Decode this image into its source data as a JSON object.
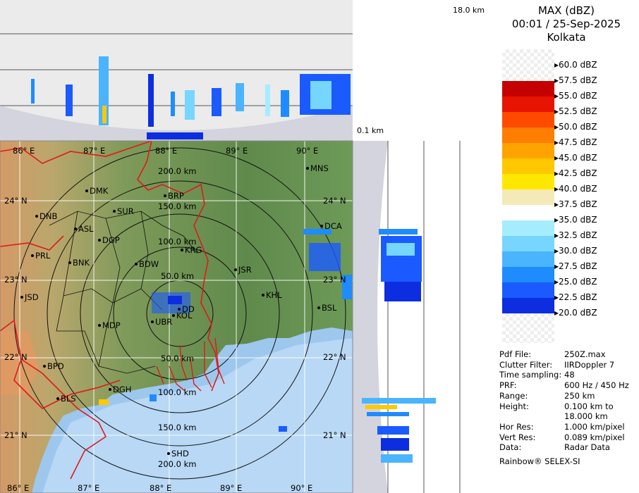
{
  "header": {
    "title": "MAX (dBZ)",
    "datetime": "00:01 / 25-Sep-2025",
    "station": "Kolkata"
  },
  "top_section": {
    "height_label": "18.0 km",
    "base_label": "0.1 km"
  },
  "legend": {
    "levels": [
      "60.0 dBZ",
      "57.5 dBZ",
      "55.0 dBZ",
      "52.5 dBZ",
      "50.0 dBZ",
      "47.5 dBZ",
      "45.0 dBZ",
      "42.5 dBZ",
      "40.0 dBZ",
      "37.5 dBZ",
      "35.0 dBZ",
      "32.5 dBZ",
      "30.0 dBZ",
      "27.5 dBZ",
      "25.0 dBZ",
      "22.5 dBZ",
      "20.0 dBZ"
    ],
    "colors": [
      "#9a0000",
      "#c40000",
      "#e61400",
      "#ff4a00",
      "#ff7d00",
      "#ffa300",
      "#ffc800",
      "#ffe800",
      "#f4eab8",
      "#ffffff",
      "#a6ecff",
      "#76d6ff",
      "#4ab4ff",
      "#1e8cff",
      "#1a5aff",
      "#0c2ee0",
      "#081c9a"
    ]
  },
  "info": {
    "rows": [
      {
        "label": "Pdf File:",
        "value": "250Z.max"
      },
      {
        "label": "Clutter Filter:",
        "value": "IIRDoppler 7"
      },
      {
        "label": "Time sampling:",
        "value": "48"
      },
      {
        "label": "PRF:",
        "value": "600 Hz / 450 Hz"
      },
      {
        "label": "Range:",
        "value": "250 km"
      },
      {
        "label": "Height:",
        "value": "0.100 km to"
      },
      {
        "label": "",
        "value": "18.000 km"
      },
      {
        "label": "Hor Res:",
        "value": "1.000 km/pixel"
      },
      {
        "label": "Vert Res:",
        "value": "0.089 km/pixel"
      },
      {
        "label": "Data:",
        "value": "Radar Data"
      }
    ],
    "footer": "Rainbow® SELEX-SI"
  },
  "map": {
    "lon_labels": [
      "86° E",
      "87° E",
      "88° E",
      "89° E",
      "90° E"
    ],
    "lat_labels": [
      "24° N",
      "23° N",
      "22° N",
      "21° N"
    ],
    "range_labels": [
      "50.0 km",
      "100.0 km",
      "150.0 km",
      "200.0 km",
      "50.0 km",
      "100.0 km",
      "150.0 km",
      "200.0 km"
    ],
    "cities": [
      "DMK",
      "BRP",
      "MNS",
      "DNB",
      "SUR",
      "ASL",
      "DGP",
      "PRL",
      "BNK",
      "KRG",
      "BDW",
      "JSR",
      "DCA",
      "JSD",
      "KHL",
      "DD",
      "MDP",
      "BSL",
      "UBR",
      "KOL",
      "BPD",
      "DGH",
      "BLS",
      "SHD"
    ]
  }
}
